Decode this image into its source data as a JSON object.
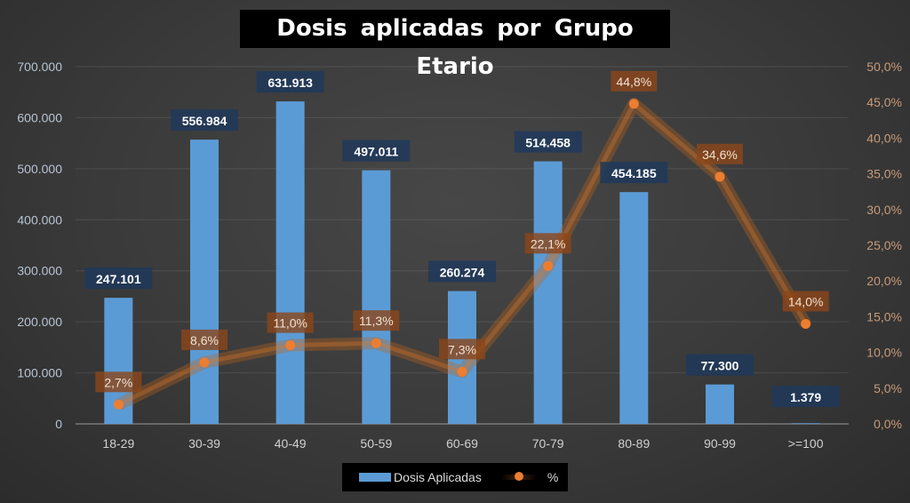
{
  "chart_data": {
    "type": "bar+line",
    "title": "Dosis aplicadas por Grupo Etario",
    "categories": [
      "18-29",
      "30-39",
      "40-49",
      "50-59",
      "60-69",
      "70-79",
      "80-89",
      "90-99",
      ">=100"
    ],
    "series": [
      {
        "name": "Dosis Aplicadas",
        "type": "bar",
        "axis": "left",
        "color": "#5b9bd5",
        "values": [
          247101,
          556984,
          631913,
          497011,
          260274,
          514458,
          454185,
          77300,
          1379
        ],
        "labels": [
          "247.101",
          "556.984",
          "631.913",
          "497.011",
          "260.274",
          "514.458",
          "454.185",
          "77.300",
          "1.379"
        ]
      },
      {
        "name": "%",
        "type": "line",
        "axis": "right",
        "color": "#ed7d31",
        "values": [
          2.7,
          8.6,
          11.0,
          11.3,
          7.3,
          22.1,
          44.8,
          34.6,
          14.0
        ],
        "labels": [
          "2,7%",
          "8,6%",
          "11,0%",
          "11,3%",
          "7,3%",
          "22,1%",
          "44,8%",
          "34,6%",
          "14,0%"
        ]
      }
    ],
    "left_axis": {
      "ylim": [
        0,
        700000
      ],
      "ticks": [
        "0",
        "100.000",
        "200.000",
        "300.000",
        "400.000",
        "500.000",
        "600.000",
        "700.000"
      ]
    },
    "right_axis": {
      "ylim": [
        0,
        50
      ],
      "ticks": [
        "0,0%",
        "5,0%",
        "10,0%",
        "15,0%",
        "20,0%",
        "25,0%",
        "30,0%",
        "35,0%",
        "40,0%",
        "45,0%",
        "50,0%"
      ]
    },
    "grid": true,
    "legend": "bottom"
  }
}
